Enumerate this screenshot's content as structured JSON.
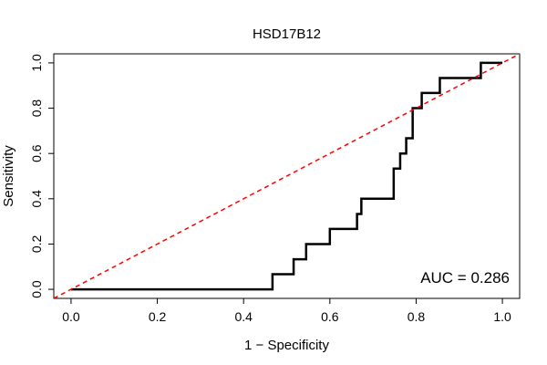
{
  "chart_data": {
    "type": "line",
    "title": "HSD17B12",
    "xlabel": "1 − Specificity",
    "ylabel": "Sensitivity",
    "xlim": [
      -0.04,
      1.04
    ],
    "ylim": [
      -0.04,
      1.04
    ],
    "xticks": [
      0.0,
      0.2,
      0.4,
      0.6,
      0.8,
      1.0
    ],
    "yticks": [
      0.0,
      0.2,
      0.4,
      0.6,
      0.8,
      1.0
    ],
    "xtick_labels": [
      "0.0",
      "0.2",
      "0.4",
      "0.6",
      "0.8",
      "1.0"
    ],
    "ytick_labels": [
      "0.0",
      "0.2",
      "0.4",
      "0.6",
      "0.8",
      "1.0"
    ],
    "grid": false,
    "annotation": "AUC = 0.286",
    "series": [
      {
        "style": "step",
        "color": "#000000",
        "x": [
          0.0,
          0.467,
          0.467,
          0.516,
          0.516,
          0.545,
          0.545,
          0.6,
          0.6,
          0.663,
          0.663,
          0.673,
          0.673,
          0.748,
          0.748,
          0.763,
          0.763,
          0.777,
          0.777,
          0.792,
          0.792,
          0.813,
          0.813,
          0.855,
          0.855,
          0.95,
          0.95,
          1.0
        ],
        "y": [
          0.0,
          0.0,
          0.067,
          0.067,
          0.133,
          0.133,
          0.2,
          0.2,
          0.267,
          0.267,
          0.333,
          0.333,
          0.4,
          0.4,
          0.533,
          0.533,
          0.6,
          0.6,
          0.667,
          0.667,
          0.8,
          0.8,
          0.867,
          0.867,
          0.933,
          0.933,
          1.0,
          1.0
        ]
      },
      {
        "style": "dashed",
        "color": "#ff0000",
        "x": [
          -0.04,
          1.04
        ],
        "y": [
          -0.04,
          1.04
        ]
      }
    ]
  }
}
